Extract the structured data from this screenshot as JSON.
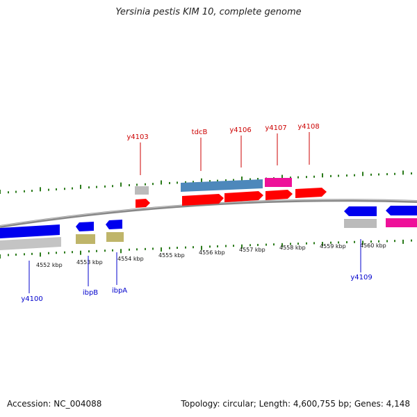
{
  "title": "Yersinia pestis KIM 10, complete genome",
  "footer": {
    "accession": "Accession: NC_004088",
    "topology": "Topology: circular; Length: 4,600,755 bp; Genes: 4,148"
  },
  "colors": {
    "backbone": "#888888",
    "tick": "#2a7a1a",
    "label_top": "#cc0000",
    "label_bottom": "#0000cc",
    "red": "#ff0000",
    "blue": "#0000ee",
    "steel": "#4d88bb",
    "magenta": "#ee1199",
    "grey": "#bbbbbb",
    "khaki": "#bfb56a"
  },
  "scale": {
    "unit": "kbp",
    "labels": [
      "4552 kbp",
      "4553 kbp",
      "4554 kbp",
      "4555 kbp",
      "4556 kbp",
      "4557 kbp",
      "4558 kbp",
      "4559 kbp",
      "4560 kbp"
    ]
  },
  "genes_top": [
    {
      "name": "y4103",
      "color": "red"
    },
    {
      "name": "tdcB",
      "color": "steel"
    },
    {
      "name": "y4106",
      "color": "red"
    },
    {
      "name": "y4107",
      "color": "magenta"
    },
    {
      "name": "y4108",
      "color": "red"
    }
  ],
  "genes_bottom": [
    {
      "name": "y4100",
      "color": "blue"
    },
    {
      "name": "ibpB",
      "color": "blue"
    },
    {
      "name": "ibpA",
      "color": "blue"
    },
    {
      "name": "y4109",
      "color": "blue"
    }
  ]
}
